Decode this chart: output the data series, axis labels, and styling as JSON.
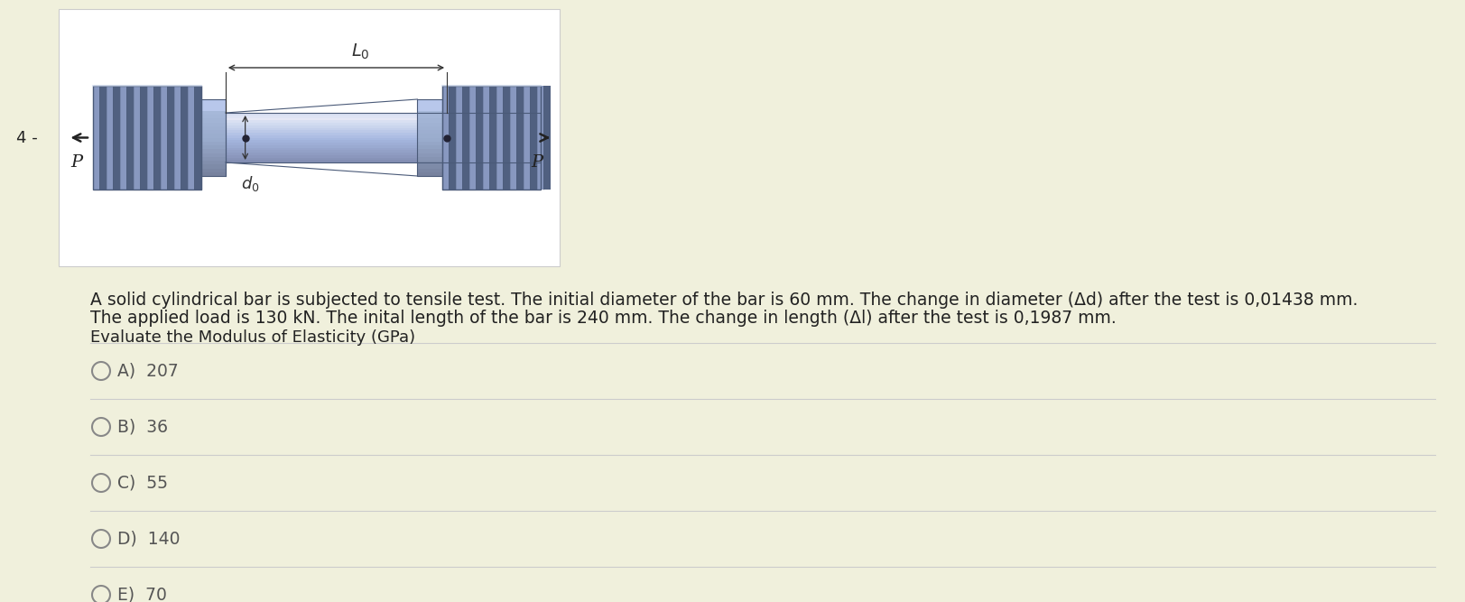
{
  "background_color": "#f0f0dc",
  "question_number": "4 -",
  "diagram_bg": "#ffffff",
  "body_text_line1": "A solid cylindrical bar is subjected to tensile test. The initial diameter of the bar is 60 mm. The change in diameter (Δd) after the test is 0,01438 mm.",
  "body_text_line2": "The applied load is 130 kN. The inital length of the bar is 240 mm. The change in length (Δl) after the test is 0,1987 mm.",
  "evaluate_text": "Evaluate the Modulus of Elasticity (GPa)",
  "options": [
    {
      "label": "A)",
      "value": "207"
    },
    {
      "label": "B)",
      "value": "36"
    },
    {
      "label": "C)",
      "value": "55"
    },
    {
      "label": "D)",
      "value": "140"
    },
    {
      "label": "E)",
      "value": "70"
    }
  ],
  "text_color": "#222222",
  "option_text_color": "#555555",
  "separator_color": "#cccccc",
  "font_size_body": 13.5,
  "font_size_option": 13.5,
  "font_size_qnum": 13,
  "bar_body_color": "#a8b8d8",
  "bar_highlight": "#d0dbf0",
  "bar_shadow": "#6878a0",
  "bar_edge": "#4a5a78",
  "thread_light": "#8898c0",
  "thread_dark": "#506080",
  "flange_color": "#9aaaca"
}
